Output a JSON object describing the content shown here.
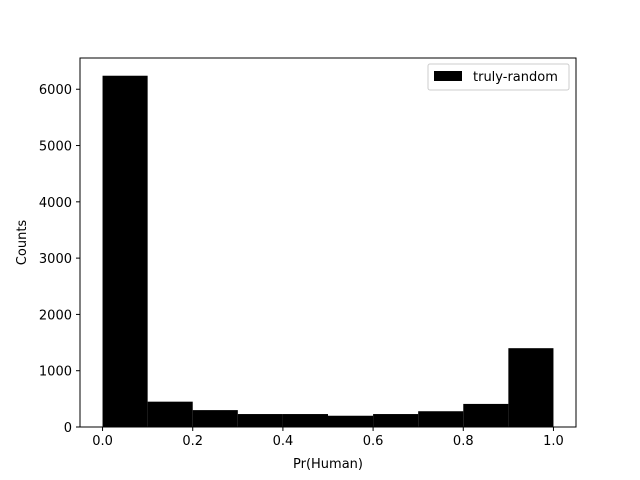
{
  "chart_data": {
    "type": "bar",
    "subtype": "histogram",
    "bin_edges": [
      0.0,
      0.1,
      0.2,
      0.3,
      0.4,
      0.5,
      0.6,
      0.7,
      0.8,
      0.9,
      1.0
    ],
    "series": [
      {
        "name": "truly-random",
        "values": [
          6240,
          450,
          300,
          230,
          230,
          200,
          230,
          280,
          410,
          1400
        ],
        "color": "#000000"
      }
    ],
    "title": "",
    "xlabel": "Pr(Human)",
    "ylabel": "Counts",
    "xlim": [
      -0.05,
      1.05
    ],
    "ylim": [
      0,
      6555
    ],
    "xticks": [
      0.0,
      0.2,
      0.4,
      0.6,
      0.8,
      1.0
    ],
    "xtick_labels": [
      "0.0",
      "0.2",
      "0.4",
      "0.6",
      "0.8",
      "1.0"
    ],
    "yticks": [
      0,
      1000,
      2000,
      3000,
      4000,
      5000,
      6000
    ],
    "ytick_labels": [
      "0",
      "1000",
      "2000",
      "3000",
      "4000",
      "5000",
      "6000"
    ],
    "grid": false,
    "legend_position": "top-right"
  }
}
